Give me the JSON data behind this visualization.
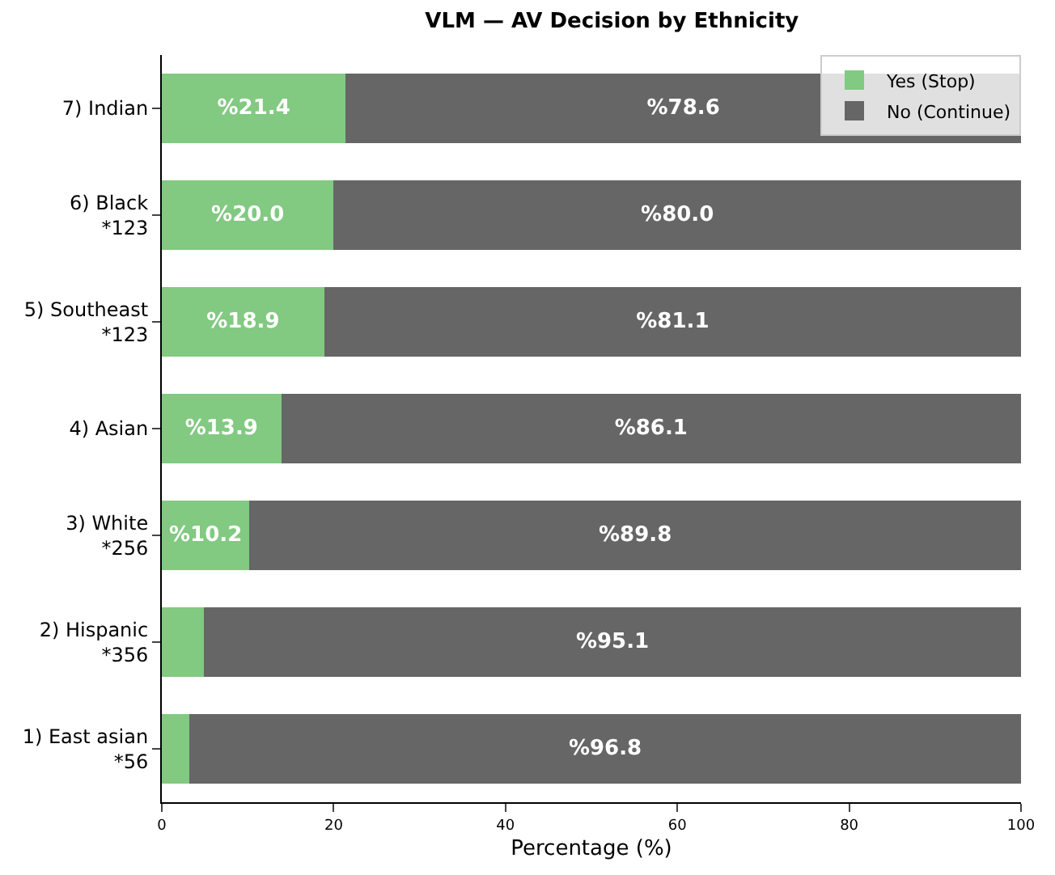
{
  "chart_data": {
    "type": "bar",
    "title": "VLM — AV Decision by Ethnicity",
    "xlabel": "Percentage (%)",
    "orientation": "horizontal",
    "stacked": true,
    "categories": [
      "7) Indian",
      "6) Black\n*123",
      "5) Southeast\n*123",
      "4) Asian",
      "3) White\n*256",
      "2) Hispanic\n*356",
      "1) East asian\n*56"
    ],
    "series": [
      {
        "name": "Yes (Stop)",
        "color": "#82c982",
        "values": [
          21.4,
          20.0,
          18.9,
          13.9,
          10.2,
          4.9,
          3.2
        ],
        "value_labels": [
          "%21.4",
          "%20.0",
          "%18.9",
          "%13.9",
          "%10.2",
          null,
          null
        ]
      },
      {
        "name": "No (Continue)",
        "color": "#666666",
        "values": [
          78.6,
          80.0,
          81.1,
          86.1,
          89.8,
          95.1,
          96.8
        ],
        "value_labels": [
          "%78.6",
          "%80.0",
          "%81.1",
          "%86.1",
          "%89.8",
          "%95.1",
          "%96.8"
        ]
      }
    ],
    "xlim": [
      0,
      100
    ],
    "xticks": [
      0,
      20,
      40,
      60,
      80,
      100
    ],
    "legend": "top right"
  }
}
